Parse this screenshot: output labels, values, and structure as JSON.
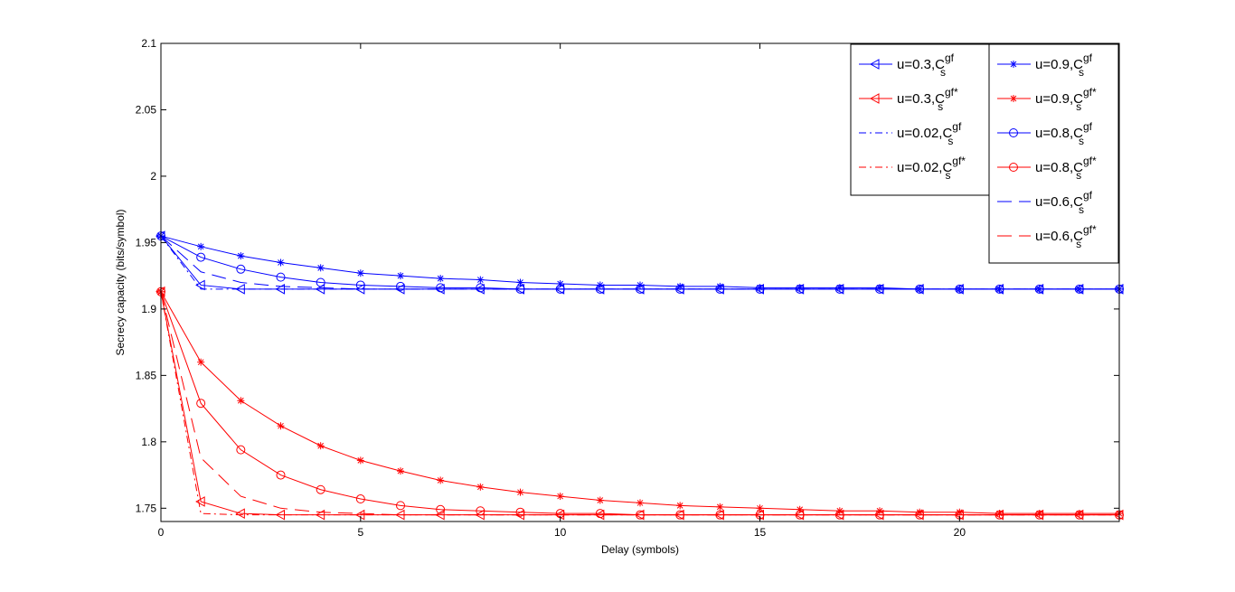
{
  "chart_data": {
    "type": "line",
    "title": "",
    "xlabel": "Delay (symbols)",
    "ylabel": "Secrecy capacity (bits/symbol)",
    "xlim": [
      0,
      24
    ],
    "ylim": [
      1.74,
      2.1
    ],
    "xticks": [
      0,
      5,
      10,
      15,
      20
    ],
    "yticks": [
      1.75,
      1.8,
      1.85,
      1.9,
      1.95,
      2,
      2.05,
      2.1
    ],
    "ytick_labels": [
      "1.75",
      "1.8",
      "1.85",
      "1.9",
      "1.95",
      "2",
      "2.05",
      "2.1"
    ],
    "grid": false,
    "legend_placement": "top-right, two boxes",
    "colors": {
      "blue": "#0000ff",
      "red": "#ff0000"
    },
    "x": [
      0,
      1,
      2,
      3,
      4,
      5,
      6,
      7,
      8,
      9,
      10,
      11,
      12,
      13,
      14,
      15,
      16,
      17,
      18,
      19,
      20,
      21,
      22,
      23,
      24
    ],
    "series": [
      {
        "name": "u=0.3,C_s^gf",
        "legend_base": "u=0.3,C",
        "legend_sup": "gf",
        "legend_sub": "s",
        "color": "blue",
        "marker": "triangle-left",
        "dash": "solid",
        "legend_box": 0,
        "values": [
          1.955,
          1.918,
          1.915,
          1.915,
          1.915,
          1.915,
          1.915,
          1.915,
          1.915,
          1.915,
          1.915,
          1.915,
          1.915,
          1.915,
          1.915,
          1.915,
          1.915,
          1.915,
          1.915,
          1.915,
          1.915,
          1.915,
          1.915,
          1.915,
          1.915
        ]
      },
      {
        "name": "u=0.3,C_s^gf*",
        "legend_base": "u=0.3,C",
        "legend_sup": "gf*",
        "legend_sub": "s",
        "color": "red",
        "marker": "triangle-left",
        "dash": "solid",
        "legend_box": 0,
        "values": [
          1.913,
          1.755,
          1.746,
          1.745,
          1.745,
          1.745,
          1.745,
          1.745,
          1.745,
          1.745,
          1.745,
          1.745,
          1.745,
          1.745,
          1.745,
          1.745,
          1.745,
          1.745,
          1.745,
          1.745,
          1.745,
          1.745,
          1.745,
          1.745,
          1.745
        ]
      },
      {
        "name": "u=0.02,C_s^gf",
        "legend_base": "u=0.02,C",
        "legend_sup": "gf",
        "legend_sub": "s",
        "color": "blue",
        "marker": "none",
        "dash": "dashdot",
        "legend_box": 0,
        "values": [
          1.955,
          1.915,
          1.915,
          1.915,
          1.915,
          1.915,
          1.915,
          1.915,
          1.915,
          1.915,
          1.915,
          1.915,
          1.915,
          1.915,
          1.915,
          1.915,
          1.915,
          1.915,
          1.915,
          1.915,
          1.915,
          1.915,
          1.915,
          1.915,
          1.915
        ]
      },
      {
        "name": "u=0.02,C_s^gf*",
        "legend_base": "u=0.02,C",
        "legend_sup": "gf*",
        "legend_sub": "s",
        "color": "red",
        "marker": "none",
        "dash": "dashdot",
        "legend_box": 0,
        "values": [
          1.913,
          1.746,
          1.745,
          1.745,
          1.745,
          1.745,
          1.745,
          1.745,
          1.745,
          1.745,
          1.745,
          1.745,
          1.745,
          1.745,
          1.745,
          1.745,
          1.745,
          1.745,
          1.745,
          1.745,
          1.745,
          1.745,
          1.745,
          1.745,
          1.745
        ]
      },
      {
        "name": "u=0.9,C_s^gf",
        "legend_base": "u=0.9,C",
        "legend_sup": "gf",
        "legend_sub": "s",
        "color": "blue",
        "marker": "star",
        "dash": "solid",
        "legend_box": 1,
        "values": [
          1.955,
          1.947,
          1.94,
          1.935,
          1.931,
          1.927,
          1.925,
          1.923,
          1.922,
          1.92,
          1.919,
          1.918,
          1.918,
          1.917,
          1.917,
          1.916,
          1.916,
          1.916,
          1.916,
          1.915,
          1.915,
          1.915,
          1.915,
          1.915,
          1.915
        ]
      },
      {
        "name": "u=0.9,C_s^gf*",
        "legend_base": "u=0.9,C",
        "legend_sup": "gf*",
        "legend_sub": "s",
        "color": "red",
        "marker": "star",
        "dash": "solid",
        "legend_box": 1,
        "values": [
          1.913,
          1.86,
          1.831,
          1.812,
          1.797,
          1.786,
          1.778,
          1.771,
          1.766,
          1.762,
          1.759,
          1.756,
          1.754,
          1.752,
          1.751,
          1.75,
          1.749,
          1.748,
          1.748,
          1.747,
          1.747,
          1.746,
          1.746,
          1.746,
          1.746
        ]
      },
      {
        "name": "u=0.8,C_s^gf",
        "legend_base": "u=0.8,C",
        "legend_sup": "gf",
        "legend_sub": "s",
        "color": "blue",
        "marker": "circle",
        "dash": "solid",
        "legend_box": 1,
        "values": [
          1.955,
          1.939,
          1.93,
          1.924,
          1.92,
          1.918,
          1.917,
          1.916,
          1.916,
          1.915,
          1.915,
          1.915,
          1.915,
          1.915,
          1.915,
          1.915,
          1.915,
          1.915,
          1.915,
          1.915,
          1.915,
          1.915,
          1.915,
          1.915,
          1.915
        ]
      },
      {
        "name": "u=0.8,C_s^gf*",
        "legend_base": "u=0.8,C",
        "legend_sup": "gf*",
        "legend_sub": "s",
        "color": "red",
        "marker": "circle",
        "dash": "solid",
        "legend_box": 1,
        "values": [
          1.913,
          1.829,
          1.794,
          1.775,
          1.764,
          1.757,
          1.752,
          1.749,
          1.748,
          1.747,
          1.746,
          1.746,
          1.745,
          1.745,
          1.745,
          1.745,
          1.745,
          1.745,
          1.745,
          1.745,
          1.745,
          1.745,
          1.745,
          1.745,
          1.745
        ]
      },
      {
        "name": "u=0.6,C_s^gf",
        "legend_base": "u=0.6,C",
        "legend_sup": "gf",
        "legend_sub": "s",
        "color": "blue",
        "marker": "none",
        "dash": "dashed",
        "legend_box": 1,
        "values": [
          1.955,
          1.928,
          1.92,
          1.917,
          1.916,
          1.915,
          1.915,
          1.915,
          1.915,
          1.915,
          1.915,
          1.915,
          1.915,
          1.915,
          1.915,
          1.915,
          1.915,
          1.915,
          1.915,
          1.915,
          1.915,
          1.915,
          1.915,
          1.915,
          1.915
        ]
      },
      {
        "name": "u=0.6,C_s^gf*",
        "legend_base": "u=0.6,C",
        "legend_sup": "gf*",
        "legend_sub": "s",
        "color": "red",
        "marker": "none",
        "dash": "dashed",
        "legend_box": 1,
        "values": [
          1.913,
          1.788,
          1.759,
          1.75,
          1.747,
          1.746,
          1.745,
          1.745,
          1.745,
          1.745,
          1.745,
          1.745,
          1.745,
          1.745,
          1.745,
          1.745,
          1.745,
          1.745,
          1.745,
          1.745,
          1.745,
          1.745,
          1.745,
          1.745,
          1.745
        ]
      }
    ]
  }
}
